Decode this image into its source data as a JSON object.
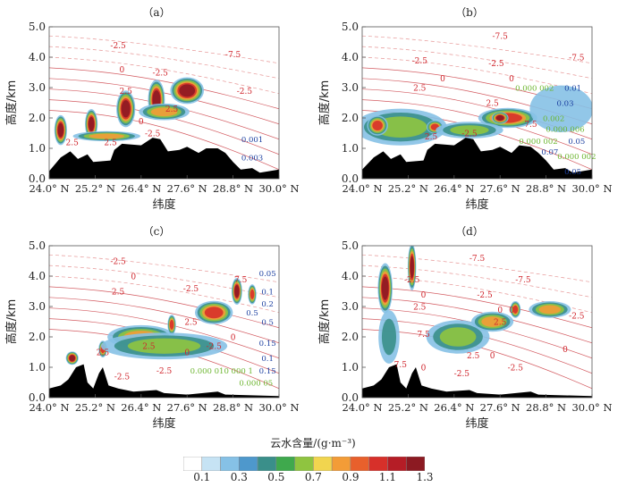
{
  "figure": {
    "colorbar": {
      "title": "云水含量/(g·m⁻³)",
      "colors": [
        "#ffffff",
        "#c6e3f4",
        "#86c1e6",
        "#4e98cc",
        "#3a8f8a",
        "#3fa94d",
        "#8fc440",
        "#f1d54f",
        "#f39c37",
        "#e8602c",
        "#d7302a",
        "#b51d26",
        "#8c1a22"
      ],
      "tick_labels": [
        "0.1",
        "0.3",
        "0.5",
        "0.7",
        "0.9",
        "1.1",
        "1.3"
      ]
    }
  },
  "chart_data": [
    {
      "panel": "(a)",
      "type": "heatmap",
      "title": "（a）",
      "xlabel": "纬度",
      "ylabel": "高度/km",
      "xlim": [
        24.0,
        30.0
      ],
      "ylim": [
        0.0,
        5.0
      ],
      "x_ticks": [
        "24.0° N",
        "25.2° N",
        "26.4° N",
        "27.6° N",
        "28.8° N",
        "30.0° N"
      ],
      "y_ticks": [
        "0.0",
        "1.0",
        "2.0",
        "3.0",
        "4.0",
        "5.0"
      ],
      "terrain": [
        [
          24.0,
          0.25
        ],
        [
          24.3,
          0.7
        ],
        [
          24.55,
          0.9
        ],
        [
          24.75,
          0.65
        ],
        [
          25.0,
          0.8
        ],
        [
          25.15,
          0.55
        ],
        [
          25.6,
          0.6
        ],
        [
          25.7,
          0.95
        ],
        [
          25.9,
          1.15
        ],
        [
          26.4,
          1.1
        ],
        [
          26.7,
          1.35
        ],
        [
          26.9,
          1.3
        ],
        [
          27.1,
          0.9
        ],
        [
          27.4,
          0.95
        ],
        [
          27.6,
          1.05
        ],
        [
          27.9,
          0.85
        ],
        [
          28.1,
          1.0
        ],
        [
          28.4,
          1.0
        ],
        [
          28.6,
          0.85
        ],
        [
          28.8,
          0.55
        ],
        [
          29.0,
          0.3
        ],
        [
          29.3,
          0.35
        ],
        [
          29.5,
          0.2
        ],
        [
          30.0,
          0.3
        ]
      ],
      "cloud_cells": [
        {
          "x": 24.3,
          "y": 1.6,
          "w": 0.3,
          "h": 0.9,
          "v": 1.2
        },
        {
          "x": 25.1,
          "y": 1.8,
          "w": 0.3,
          "h": 0.9,
          "v": 1.2
        },
        {
          "x": 26.0,
          "y": 2.3,
          "w": 0.45,
          "h": 1.1,
          "v": 1.2
        },
        {
          "x": 26.8,
          "y": 2.6,
          "w": 0.4,
          "h": 1.2,
          "v": 1.2
        },
        {
          "x": 27.6,
          "y": 2.9,
          "w": 0.8,
          "h": 0.8,
          "v": 1.3
        },
        {
          "x": 25.5,
          "y": 1.4,
          "w": 1.6,
          "h": 0.3,
          "v": 0.9
        },
        {
          "x": 27.0,
          "y": 2.2,
          "w": 1.2,
          "h": 0.5,
          "v": 0.9
        }
      ],
      "contour_labels": [
        {
          "text": "-2.5",
          "x": 25.8,
          "y": 4.3
        },
        {
          "text": "-7.5",
          "x": 28.8,
          "y": 4.0
        },
        {
          "text": "0",
          "x": 25.9,
          "y": 3.5
        },
        {
          "text": "-2.5",
          "x": 26.9,
          "y": 3.4
        },
        {
          "text": "2.5",
          "x": 26.0,
          "y": 2.8
        },
        {
          "text": "-2.5",
          "x": 29.1,
          "y": 2.8
        },
        {
          "text": "2.5",
          "x": 27.2,
          "y": 2.2
        },
        {
          "text": "0",
          "x": 26.4,
          "y": 1.8
        },
        {
          "text": "-2.5",
          "x": 26.7,
          "y": 1.4
        },
        {
          "text": "2.5",
          "x": 24.6,
          "y": 1.1
        },
        {
          "text": "2.5",
          "x": 25.6,
          "y": 1.1
        }
      ],
      "mixing_ratio_labels": [
        {
          "text": "0.001",
          "x": 29.3,
          "y": 1.2,
          "color": "#1b3fa0"
        },
        {
          "text": "0.003",
          "x": 29.3,
          "y": 0.6,
          "color": "#1b3fa0"
        }
      ]
    },
    {
      "panel": "(b)",
      "type": "heatmap",
      "title": "（b）",
      "xlabel": "纬度",
      "ylabel": "高度/km",
      "xlim": [
        24.0,
        30.0
      ],
      "ylim": [
        0.0,
        5.0
      ],
      "x_ticks": [
        "24.0° N",
        "25.2° N",
        "26.4° N",
        "27.6° N",
        "28.8° N",
        "30.0° N"
      ],
      "y_ticks": [
        "0.0",
        "1.0",
        "2.0",
        "3.0",
        "4.0",
        "5.0"
      ],
      "terrain": [
        [
          24.0,
          0.3
        ],
        [
          24.3,
          0.7
        ],
        [
          24.55,
          0.9
        ],
        [
          24.75,
          0.65
        ],
        [
          25.0,
          0.8
        ],
        [
          25.15,
          0.55
        ],
        [
          25.6,
          0.6
        ],
        [
          25.7,
          0.95
        ],
        [
          25.9,
          1.15
        ],
        [
          26.4,
          1.1
        ],
        [
          26.7,
          1.35
        ],
        [
          26.9,
          1.3
        ],
        [
          27.1,
          0.9
        ],
        [
          27.4,
          0.95
        ],
        [
          27.6,
          1.05
        ],
        [
          27.9,
          0.85
        ],
        [
          28.1,
          1.1
        ],
        [
          28.4,
          1.05
        ],
        [
          28.6,
          0.85
        ],
        [
          28.8,
          0.6
        ],
        [
          29.0,
          0.3
        ],
        [
          29.3,
          0.35
        ],
        [
          29.5,
          0.2
        ],
        [
          30.0,
          0.3
        ]
      ],
      "cloud_cells": [
        {
          "x": 25.0,
          "y": 1.7,
          "w": 2.2,
          "h": 1.1,
          "v": 0.7
        },
        {
          "x": 24.4,
          "y": 1.75,
          "w": 0.5,
          "h": 0.6,
          "v": 1.0
        },
        {
          "x": 25.9,
          "y": 1.7,
          "w": 0.4,
          "h": 0.4,
          "v": 0.95
        },
        {
          "x": 27.8,
          "y": 2.0,
          "w": 1.4,
          "h": 0.6,
          "v": 1.1
        },
        {
          "x": 27.6,
          "y": 2.0,
          "w": 0.4,
          "h": 0.35,
          "v": 1.3
        },
        {
          "x": 26.8,
          "y": 1.6,
          "w": 1.6,
          "h": 0.5,
          "v": 0.6
        },
        {
          "x": 29.2,
          "y": 2.3,
          "w": 1.5,
          "h": 1.4,
          "v": 0.2
        }
      ],
      "contour_labels": [
        {
          "text": "-7.5",
          "x": 27.6,
          "y": 4.6
        },
        {
          "text": "-7.5",
          "x": 29.6,
          "y": 3.9
        },
        {
          "text": "-2.5",
          "x": 25.5,
          "y": 3.8
        },
        {
          "text": "-2.5",
          "x": 27.5,
          "y": 3.7
        },
        {
          "text": "0",
          "x": 26.1,
          "y": 3.2
        },
        {
          "text": "0",
          "x": 27.9,
          "y": 3.2
        },
        {
          "text": "2.5",
          "x": 25.5,
          "y": 2.9
        },
        {
          "text": "2.5",
          "x": 27.4,
          "y": 2.4
        },
        {
          "text": "7.5",
          "x": 28.4,
          "y": 1.7
        },
        {
          "text": "-2.5",
          "x": 26.8,
          "y": 1.4
        },
        {
          "text": "2.5",
          "x": 25.8,
          "y": 1.3
        }
      ],
      "mixing_ratio_labels": [
        {
          "text": "0.000 002",
          "x": 28.5,
          "y": 2.9,
          "color": "#6bb52e"
        },
        {
          "text": "0.01",
          "x": 29.5,
          "y": 2.9,
          "color": "#1b3fa0"
        },
        {
          "text": "0.03",
          "x": 29.3,
          "y": 2.4,
          "color": "#1b3fa0"
        },
        {
          "text": "0.002",
          "x": 29.0,
          "y": 1.9,
          "color": "#6bb52e"
        },
        {
          "text": "0.000 006",
          "x": 29.3,
          "y": 1.55,
          "color": "#6bb52e"
        },
        {
          "text": "0.05",
          "x": 29.6,
          "y": 1.15,
          "color": "#1b3fa0"
        },
        {
          "text": "0.000 002",
          "x": 28.6,
          "y": 1.15,
          "color": "#6bb52e"
        },
        {
          "text": "0.07",
          "x": 28.9,
          "y": 0.8,
          "color": "#1b3fa0"
        },
        {
          "text": "0.000 002",
          "x": 29.6,
          "y": 0.65,
          "color": "#6bb52e"
        },
        {
          "text": "0.05",
          "x": 29.5,
          "y": 0.15,
          "color": "#1b3fa0"
        }
      ]
    },
    {
      "panel": "(c)",
      "type": "heatmap",
      "title": "（c）",
      "xlabel": "纬度",
      "ylabel": "高度/km",
      "xlim": [
        24.0,
        30.0
      ],
      "ylim": [
        0.0,
        5.0
      ],
      "x_ticks": [
        "24.0° N",
        "25.2° N",
        "26.4° N",
        "27.6° N",
        "28.8° N",
        "30.0° N"
      ],
      "y_ticks": [
        "0.0",
        "1.0",
        "2.0",
        "3.0",
        "4.0",
        "5.0"
      ],
      "terrain": [
        [
          24.0,
          0.3
        ],
        [
          24.3,
          0.4
        ],
        [
          24.5,
          0.6
        ],
        [
          24.7,
          1.0
        ],
        [
          24.9,
          1.1
        ],
        [
          25.0,
          0.5
        ],
        [
          25.15,
          0.3
        ],
        [
          25.3,
          0.8
        ],
        [
          25.4,
          1.0
        ],
        [
          25.55,
          0.4
        ],
        [
          25.8,
          0.3
        ],
        [
          26.2,
          0.2
        ],
        [
          26.8,
          0.25
        ],
        [
          27.0,
          0.15
        ],
        [
          27.6,
          0.1
        ],
        [
          28.4,
          0.2
        ],
        [
          28.6,
          0.1
        ],
        [
          30.0,
          0.05
        ]
      ],
      "cloud_cells": [
        {
          "x": 24.6,
          "y": 1.3,
          "w": 0.3,
          "h": 0.4,
          "v": 1.2
        },
        {
          "x": 25.4,
          "y": 1.6,
          "w": 0.2,
          "h": 0.5,
          "v": 1.0
        },
        {
          "x": 26.4,
          "y": 2.0,
          "w": 1.6,
          "h": 0.7,
          "v": 0.9
        },
        {
          "x": 27.2,
          "y": 2.4,
          "w": 0.2,
          "h": 0.6,
          "v": 1.1
        },
        {
          "x": 28.3,
          "y": 2.8,
          "w": 0.9,
          "h": 0.7,
          "v": 1.1
        },
        {
          "x": 28.9,
          "y": 3.5,
          "w": 0.25,
          "h": 0.8,
          "v": 1.2
        },
        {
          "x": 29.3,
          "y": 3.4,
          "w": 0.2,
          "h": 0.6,
          "v": 1.0
        },
        {
          "x": 27.0,
          "y": 1.7,
          "w": 3.0,
          "h": 0.8,
          "v": 0.6
        }
      ],
      "contour_labels": [
        {
          "text": "-2.5",
          "x": 25.8,
          "y": 4.4
        },
        {
          "text": "0",
          "x": 26.2,
          "y": 3.9
        },
        {
          "text": "2.5",
          "x": 25.8,
          "y": 3.4
        },
        {
          "text": "-2.5",
          "x": 27.7,
          "y": 3.5
        },
        {
          "text": "7.5",
          "x": 29.0,
          "y": 3.8
        },
        {
          "text": "2.5",
          "x": 27.7,
          "y": 2.4
        },
        {
          "text": "-2.5",
          "x": 28.3,
          "y": 1.6
        },
        {
          "text": "0",
          "x": 28.8,
          "y": 1.9
        },
        {
          "text": "2.5",
          "x": 26.6,
          "y": 1.6
        },
        {
          "text": "0",
          "x": 27.6,
          "y": 1.4
        },
        {
          "text": "2.5",
          "x": 25.4,
          "y": 1.4
        },
        {
          "text": "-2.5",
          "x": 27.0,
          "y": 0.8
        },
        {
          "text": "-2.5",
          "x": 25.9,
          "y": 0.6
        }
      ],
      "mixing_ratio_labels": [
        {
          "text": "0.05",
          "x": 29.7,
          "y": 4.0,
          "color": "#1b3fa0"
        },
        {
          "text": "0.1",
          "x": 29.7,
          "y": 3.4,
          "color": "#1b3fa0"
        },
        {
          "text": "0.2",
          "x": 29.7,
          "y": 3.0,
          "color": "#1b3fa0"
        },
        {
          "text": "0.5",
          "x": 29.3,
          "y": 2.7,
          "color": "#1b3fa0"
        },
        {
          "text": "0.5",
          "x": 29.7,
          "y": 2.4,
          "color": "#1b3fa0"
        },
        {
          "text": "0.15",
          "x": 29.7,
          "y": 1.7,
          "color": "#1b3fa0"
        },
        {
          "text": "0.1",
          "x": 29.7,
          "y": 1.2,
          "color": "#1b3fa0"
        },
        {
          "text": "0.000 010 000 1",
          "x": 28.5,
          "y": 0.8,
          "color": "#6bb52e"
        },
        {
          "text": "0.15",
          "x": 29.7,
          "y": 0.8,
          "color": "#1b3fa0"
        },
        {
          "text": "0.000 05",
          "x": 29.4,
          "y": 0.4,
          "color": "#6bb52e"
        }
      ]
    },
    {
      "panel": "(d)",
      "type": "heatmap",
      "title": "（d）",
      "xlabel": "纬度",
      "ylabel": "高度/km",
      "xlim": [
        24.0,
        30.0
      ],
      "ylim": [
        0.0,
        5.0
      ],
      "x_ticks": [
        "24.0° N",
        "25.2° N",
        "26.4° N",
        "27.6° N",
        "28.8° N",
        "30.0° N"
      ],
      "y_ticks": [
        "0.0",
        "1.0",
        "2.0",
        "3.0",
        "4.0",
        "5.0"
      ],
      "terrain": [
        [
          24.0,
          0.3
        ],
        [
          24.3,
          0.4
        ],
        [
          24.5,
          0.6
        ],
        [
          24.7,
          1.0
        ],
        [
          24.9,
          1.1
        ],
        [
          25.0,
          0.5
        ],
        [
          25.15,
          0.3
        ],
        [
          25.3,
          0.8
        ],
        [
          25.4,
          1.0
        ],
        [
          25.55,
          0.4
        ],
        [
          25.8,
          0.3
        ],
        [
          26.2,
          0.2
        ],
        [
          26.8,
          0.25
        ],
        [
          27.0,
          0.15
        ],
        [
          27.6,
          0.1
        ],
        [
          28.4,
          0.2
        ],
        [
          28.6,
          0.1
        ],
        [
          30.0,
          0.05
        ]
      ],
      "cloud_cells": [
        {
          "x": 24.6,
          "y": 3.6,
          "w": 0.35,
          "h": 1.5,
          "v": 1.2
        },
        {
          "x": 25.3,
          "y": 4.3,
          "w": 0.2,
          "h": 1.4,
          "v": 1.2
        },
        {
          "x": 26.5,
          "y": 2.0,
          "w": 1.5,
          "h": 1.0,
          "v": 0.6
        },
        {
          "x": 27.4,
          "y": 2.5,
          "w": 1.0,
          "h": 0.6,
          "v": 0.75
        },
        {
          "x": 28.0,
          "y": 2.9,
          "w": 0.25,
          "h": 0.5,
          "v": 1.05
        },
        {
          "x": 28.9,
          "y": 2.9,
          "w": 1.0,
          "h": 0.5,
          "v": 0.8
        },
        {
          "x": 24.7,
          "y": 2.0,
          "w": 0.5,
          "h": 1.6,
          "v": 0.5
        }
      ],
      "contour_labels": [
        {
          "text": "-7.5",
          "x": 27.0,
          "y": 4.5
        },
        {
          "text": "-7.5",
          "x": 28.2,
          "y": 3.8
        },
        {
          "text": "-2.5",
          "x": 25.3,
          "y": 3.8
        },
        {
          "text": "0",
          "x": 25.6,
          "y": 3.3
        },
        {
          "text": "-2.5",
          "x": 27.2,
          "y": 3.3
        },
        {
          "text": "2.5",
          "x": 25.5,
          "y": 2.9
        },
        {
          "text": "0",
          "x": 27.6,
          "y": 2.8
        },
        {
          "text": "0",
          "x": 27.9,
          "y": 2.8
        },
        {
          "text": "2.5",
          "x": 27.6,
          "y": 2.4
        },
        {
          "text": "-2.5",
          "x": 29.6,
          "y": 2.6
        },
        {
          "text": "7.5",
          "x": 25.6,
          "y": 2.0
        },
        {
          "text": "0",
          "x": 29.3,
          "y": 1.5
        },
        {
          "text": "2.5",
          "x": 26.9,
          "y": 1.3
        },
        {
          "text": "0",
          "x": 27.4,
          "y": 1.3
        },
        {
          "text": "7.5",
          "x": 25.0,
          "y": 1.0
        },
        {
          "text": "0",
          "x": 25.6,
          "y": 0.9
        },
        {
          "text": "-2.5",
          "x": 26.6,
          "y": 0.7
        },
        {
          "text": "-2.5",
          "x": 28.0,
          "y": 0.9
        }
      ],
      "mixing_ratio_labels": []
    }
  ]
}
